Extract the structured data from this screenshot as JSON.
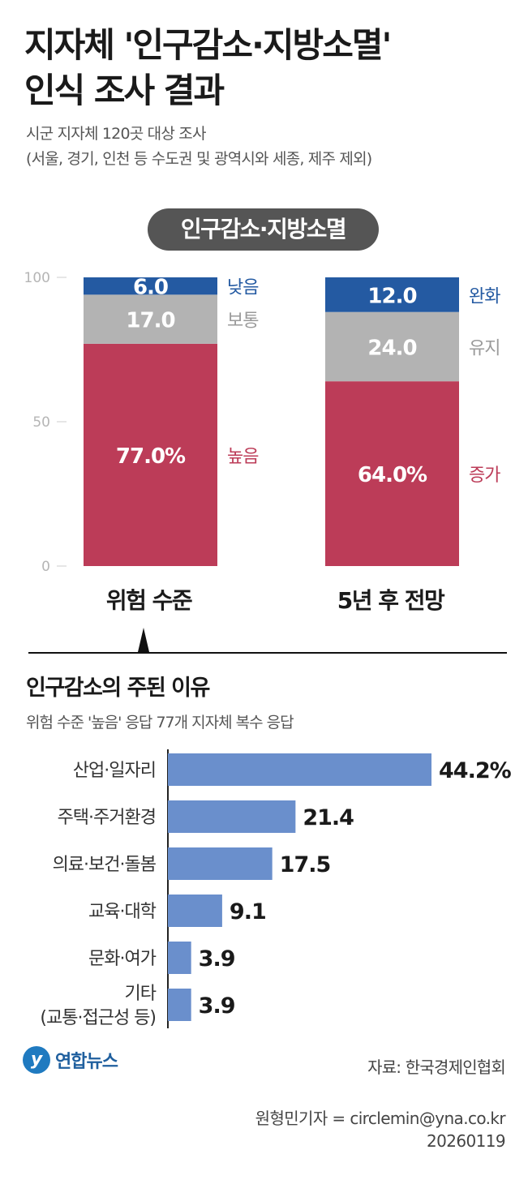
{
  "header": {
    "title_line1": "지자체 '인구감소·지방소멸'",
    "title_line2": "인식 조사 결과",
    "subtitle_line1": "시군 지자체 120곳 대상 조사",
    "subtitle_line2": "(서울, 경기, 인천 등 수도권 및 광역시와 세종, 제주 제외)"
  },
  "section1": {
    "pill_label": "인구감소·지방소멸"
  },
  "section2": {
    "title": "인구감소의 주된 이유",
    "subtitle": "위험 수준 '높음' 응답 77개 지자체 복수 응답"
  },
  "footer": {
    "logo_text": "연합뉴스",
    "source": "자료: 한국경제인협회",
    "credit_line1": "원형민기자 = circlemin@yna.co.kr",
    "credit_line2": "20260119"
  },
  "colors": {
    "red": "#bc3c58",
    "gray": "#b3b3b3",
    "blue": "#245aa2",
    "bar_blue": "#6a8fcc",
    "pill": "#555555"
  },
  "chart_data": [
    {
      "type": "bar",
      "stacked": true,
      "ylim": [
        0,
        100
      ],
      "yticks": [
        "0",
        "50",
        "100"
      ],
      "categories": [
        "위험 수준",
        "5년 후 전망"
      ],
      "series": [
        {
          "values": [
            77.0,
            64.0
          ],
          "value_labels": [
            "77.0%",
            "64.0%"
          ],
          "side_labels": [
            "높음",
            "증가"
          ],
          "color": "#bc3c58",
          "label_color": "#bc3c58"
        },
        {
          "values": [
            17.0,
            24.0
          ],
          "value_labels": [
            "17.0",
            "24.0"
          ],
          "side_labels": [
            "보통",
            "유지"
          ],
          "color": "#b3b3b3",
          "label_color": "#9a9a9a"
        },
        {
          "values": [
            6.0,
            12.0
          ],
          "value_labels": [
            "6.0",
            "12.0"
          ],
          "side_labels": [
            "낮음",
            "완화"
          ],
          "color": "#245aa2",
          "label_color": "#245aa2"
        }
      ]
    },
    {
      "type": "bar",
      "orientation": "horizontal",
      "categories": [
        "산업·일자리",
        "주택·주거환경",
        "의료·보건·돌봄",
        "교육·대학",
        "문화·여가",
        "기타\n(교통·접근성 등)"
      ],
      "values": [
        44.2,
        21.4,
        17.5,
        9.1,
        3.9,
        3.9
      ],
      "value_labels": [
        "44.2%",
        "21.4",
        "17.5",
        "9.1",
        "3.9",
        "3.9"
      ],
      "color": "#6a8fcc"
    }
  ]
}
